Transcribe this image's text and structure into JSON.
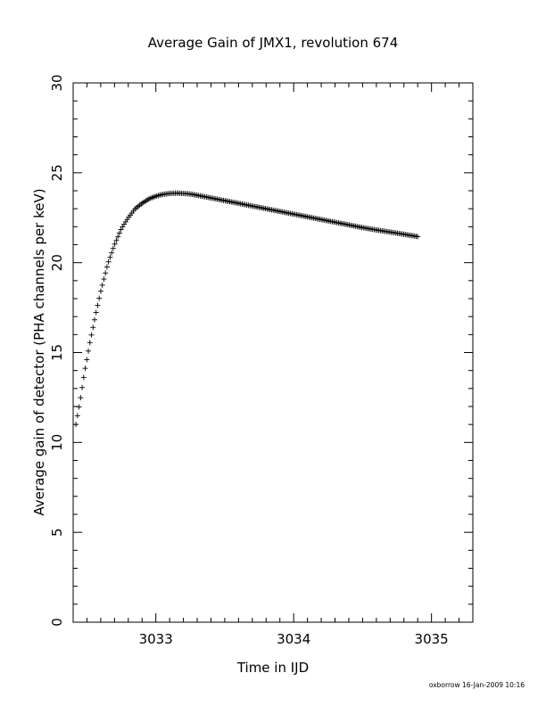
{
  "chart_data": {
    "type": "scatter",
    "title": "Average Gain of JMX1, revolution 674",
    "xlabel": "Time in IJD",
    "ylabel": "Average gain of detector (PHA channels per keV)",
    "xlim": [
      3032.4,
      3035.3
    ],
    "ylim": [
      0,
      30
    ],
    "x_ticks": [
      3033,
      3034,
      3035
    ],
    "y_ticks": [
      0,
      5,
      10,
      15,
      20,
      25,
      30
    ],
    "x_minor_step": 0.1,
    "y_minor_step": 1,
    "grid": false,
    "marker": "plus",
    "series": [
      {
        "x": [
          3032.42,
          3032.45,
          3032.48,
          3032.52,
          3032.56,
          3032.6,
          3032.65,
          3032.7,
          3032.75,
          3032.8,
          3032.85,
          3032.9,
          3032.95,
          3033.0,
          3033.05,
          3033.1,
          3033.15,
          3033.2,
          3033.25,
          3033.3,
          3033.4,
          3033.5,
          3033.6,
          3033.7,
          3033.8,
          3033.9,
          3034.0,
          3034.1,
          3034.2,
          3034.3,
          3034.4,
          3034.5,
          3034.6,
          3034.7,
          3034.8,
          3034.9
        ],
        "y": [
          11.0,
          12.3,
          13.8,
          15.5,
          17.0,
          18.4,
          19.9,
          21.0,
          21.9,
          22.5,
          23.0,
          23.3,
          23.55,
          23.7,
          23.8,
          23.85,
          23.87,
          23.85,
          23.82,
          23.75,
          23.6,
          23.45,
          23.3,
          23.15,
          23.0,
          22.85,
          22.7,
          22.55,
          22.4,
          22.25,
          22.1,
          21.95,
          21.82,
          21.7,
          21.58,
          21.45
        ]
      }
    ],
    "footnote": "oxborrow 16-Jan-2009 10:16"
  }
}
